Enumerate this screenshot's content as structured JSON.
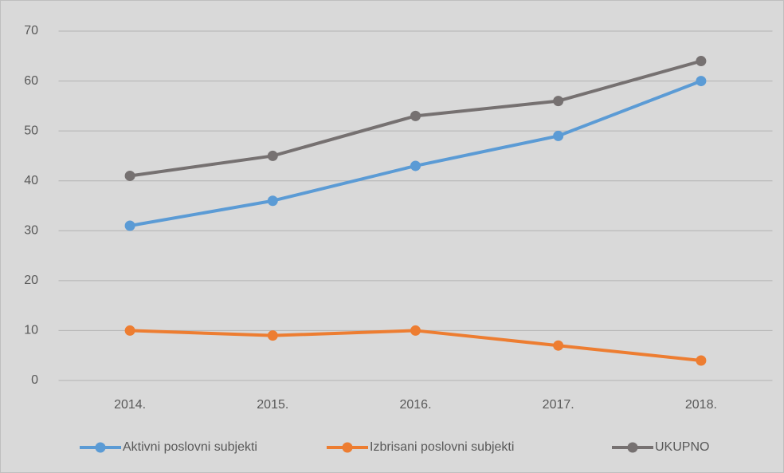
{
  "chart_data": {
    "type": "line",
    "categories": [
      "2014.",
      "2015.",
      "2016.",
      "2017.",
      "2018."
    ],
    "series": [
      {
        "name": "Aktivni poslovni subjekti",
        "color": "#5b9bd5",
        "values": [
          31,
          36,
          43,
          49,
          60
        ]
      },
      {
        "name": "Izbrisani poslovni subjekti",
        "color": "#ed7d31",
        "values": [
          10,
          9,
          10,
          7,
          4
        ]
      },
      {
        "name": "UKUPNO",
        "color": "#767171",
        "values": [
          41,
          45,
          53,
          56,
          64
        ]
      }
    ],
    "ylim": [
      0,
      70
    ],
    "yticks": [
      0,
      10,
      20,
      30,
      40,
      50,
      60,
      70
    ],
    "grid": true,
    "legend": "bottom"
  }
}
